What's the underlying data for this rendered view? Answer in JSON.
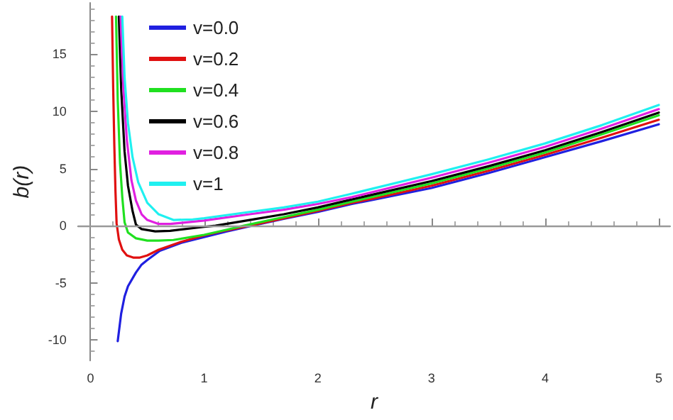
{
  "chart_data": {
    "type": "line",
    "xlabel": "r",
    "ylabel": "b(r)",
    "xlim": [
      -0.11,
      5.1
    ],
    "ylim": [
      -11.8,
      19.5
    ],
    "xticks": [
      0,
      1,
      2,
      3,
      4,
      5
    ],
    "yticks": [
      -10,
      -5,
      0,
      5,
      10,
      15
    ],
    "grid": false,
    "legend": "top left",
    "marker": "none",
    "line_style": "solid",
    "ref_lines": [
      {
        "axis": "y",
        "value": 0,
        "color": "#999999"
      }
    ],
    "series": [
      {
        "name": "v=0.0",
        "color": "#2020e0",
        "x": [
          0.24,
          0.27,
          0.3,
          0.33,
          0.4,
          0.45,
          0.5,
          0.61,
          0.8,
          1.0,
          1.2,
          1.42,
          1.7,
          2,
          2.3,
          2.5,
          3,
          3.5,
          4,
          4.5,
          5
        ],
        "values": [
          -10.1,
          -7.7,
          -6.2,
          -5.3,
          -4.1,
          -3.4,
          -3.0,
          -2.2,
          -1.5,
          -1.0,
          -0.5,
          0,
          0.6,
          1.2,
          1.9,
          2.3,
          3.3,
          4.6,
          6.0,
          7.4,
          8.87
        ]
      },
      {
        "name": "v=0.2",
        "color": "#e01010",
        "x": [
          0.19,
          0.2,
          0.21,
          0.22,
          0.23,
          0.25,
          0.28,
          0.32,
          0.38,
          0.43,
          0.5,
          0.6,
          0.8,
          1.0,
          1.2,
          1.4,
          1.7,
          2,
          2.3,
          2.5,
          3,
          3.5,
          4,
          4.5,
          5
        ],
        "values": [
          18.3,
          12,
          7,
          3,
          0.2,
          -1.2,
          -2.1,
          -2.6,
          -2.8,
          -2.8,
          -2.6,
          -2.1,
          -1.4,
          -0.85,
          -0.4,
          0,
          0.65,
          1.3,
          2.0,
          2.4,
          3.5,
          4.8,
          6.2,
          7.7,
          9.27
        ]
      },
      {
        "name": "v=0.4",
        "color": "#20e020",
        "x": [
          0.225,
          0.24,
          0.26,
          0.28,
          0.3,
          0.33,
          0.4,
          0.5,
          0.6,
          0.73,
          1,
          1.2,
          1.35,
          1.7,
          2,
          2.3,
          3,
          3.5,
          4,
          4.5,
          5
        ],
        "values": [
          18.3,
          11,
          5.5,
          2.5,
          0.3,
          -0.6,
          -1.1,
          -1.3,
          -1.3,
          -1.25,
          -0.8,
          -0.35,
          0,
          0.75,
          1.4,
          2.1,
          3.7,
          5.0,
          6.4,
          8.0,
          9.66
        ]
      },
      {
        "name": "v=0.6",
        "color": "#000000",
        "x": [
          0.25,
          0.27,
          0.3,
          0.33,
          0.37,
          0.4,
          0.45,
          0.57,
          0.7,
          1,
          1.1,
          1.4,
          1.7,
          2,
          2.3,
          3,
          3.5,
          4,
          4.5,
          5
        ],
        "values": [
          18.3,
          12,
          6.5,
          3.5,
          1.3,
          0.1,
          -0.3,
          -0.5,
          -0.45,
          -0.1,
          0,
          0.5,
          1.0,
          1.6,
          2.3,
          3.9,
          5.2,
          6.6,
          8.2,
          9.9
        ]
      },
      {
        "name": "v=0.8",
        "color": "#e020e0",
        "x": [
          0.265,
          0.29,
          0.32,
          0.36,
          0.4,
          0.45,
          0.5,
          0.6,
          0.7,
          0.8,
          1,
          1.4,
          1.7,
          2,
          2.3,
          3,
          3.5,
          4,
          4.5,
          5
        ],
        "values": [
          18.3,
          12,
          7.5,
          4,
          2.2,
          1.0,
          0.5,
          0.15,
          0.15,
          0.25,
          0.45,
          1.0,
          1.4,
          1.9,
          2.5,
          4.2,
          5.5,
          6.9,
          8.5,
          10.2
        ]
      },
      {
        "name": "v=1",
        "color": "#20f0f0",
        "x": [
          0.28,
          0.3,
          0.33,
          0.37,
          0.42,
          0.5,
          0.6,
          0.73,
          0.9,
          1,
          1.4,
          1.7,
          2,
          2.3,
          3,
          3.5,
          4,
          4.5,
          5
        ],
        "values": [
          18.3,
          13,
          9,
          6,
          3.8,
          2.0,
          1.0,
          0.5,
          0.55,
          0.65,
          1.2,
          1.6,
          2.1,
          2.8,
          4.5,
          5.8,
          7.2,
          8.8,
          10.56
        ]
      }
    ]
  }
}
